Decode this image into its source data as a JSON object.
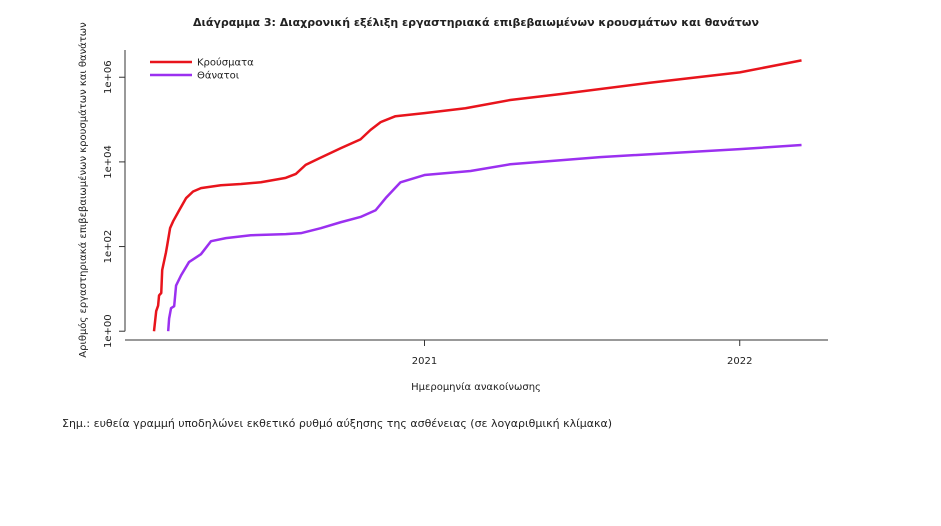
{
  "chart_data": {
    "type": "line",
    "title": "Διάγραμμα 3: Διαχρονική εξέλιξη εργαστηριακά επιβεβαιωμένων κρουσμάτων και θανάτων",
    "x_label": "Ημερομηνία ανακοίνωσης",
    "y_label": "Αριθμός εργαστηριακά επιβεβαιωμένων κρουσμάτων και θανάτων",
    "note": "Σημ.: ευθεία γραμμή υποδηλώνει εκθετικό ρυθμό αύξησης της ασθένειας (σε λογαριθμική κλίμακα)",
    "y_log": true,
    "legend": "top-left",
    "xlim": [
      2020.05,
      2022.28
    ],
    "xticks": [
      2021,
      2022
    ],
    "ylim": [
      0.62,
      4400000
    ],
    "yticks": [
      {
        "value": 1,
        "label": "1e+00"
      },
      {
        "value": 100,
        "label": "1e+02"
      },
      {
        "value": 10000,
        "label": "1e+04"
      },
      {
        "value": 1000000,
        "label": "1e+06"
      }
    ],
    "series": [
      {
        "name": "Κρούσματα",
        "color": "#e8141c",
        "x": [
          2020.142,
          2020.149,
          2020.155,
          2020.158,
          2020.165,
          2020.168,
          2020.18,
          2020.184,
          2020.193,
          2020.203,
          2020.222,
          2020.244,
          2020.266,
          2020.291,
          2020.307,
          2020.354,
          2020.418,
          2020.481,
          2020.56,
          2020.592,
          2020.623,
          2020.665,
          2020.734,
          2020.797,
          2020.829,
          2020.861,
          2020.908,
          2021.0,
          2021.13,
          2021.272,
          2021.43,
          2021.715,
          2022.0,
          2022.196
        ],
        "values": [
          1,
          3,
          4,
          7,
          8,
          28,
          73,
          108,
          272,
          400,
          720,
          1400,
          2000,
          2400,
          2500,
          2800,
          3000,
          3300,
          4200,
          5200,
          8500,
          12000,
          21000,
          34000,
          57000,
          87000,
          120000,
          142000,
          185000,
          290000,
          400000,
          740000,
          1300000,
          2500000
        ]
      },
      {
        "name": "Θάνατοι",
        "color": "#9b30f0",
        "x": [
          2020.187,
          2020.19,
          2020.196,
          2020.206,
          2020.212,
          2020.228,
          2020.253,
          2020.291,
          2020.323,
          2020.37,
          2020.449,
          2020.56,
          2020.608,
          2020.671,
          2020.734,
          2020.797,
          2020.845,
          2020.877,
          2020.924,
          2021.0,
          2021.146,
          2021.272,
          2021.557,
          2022.0,
          2022.196
        ],
        "values": [
          1,
          2,
          3.5,
          3.9,
          12,
          21,
          43,
          66,
          134,
          158,
          185,
          196,
          207,
          272,
          375,
          500,
          720,
          1400,
          3300,
          4900,
          6100,
          8800,
          13000,
          20000,
          25000
        ]
      }
    ]
  }
}
